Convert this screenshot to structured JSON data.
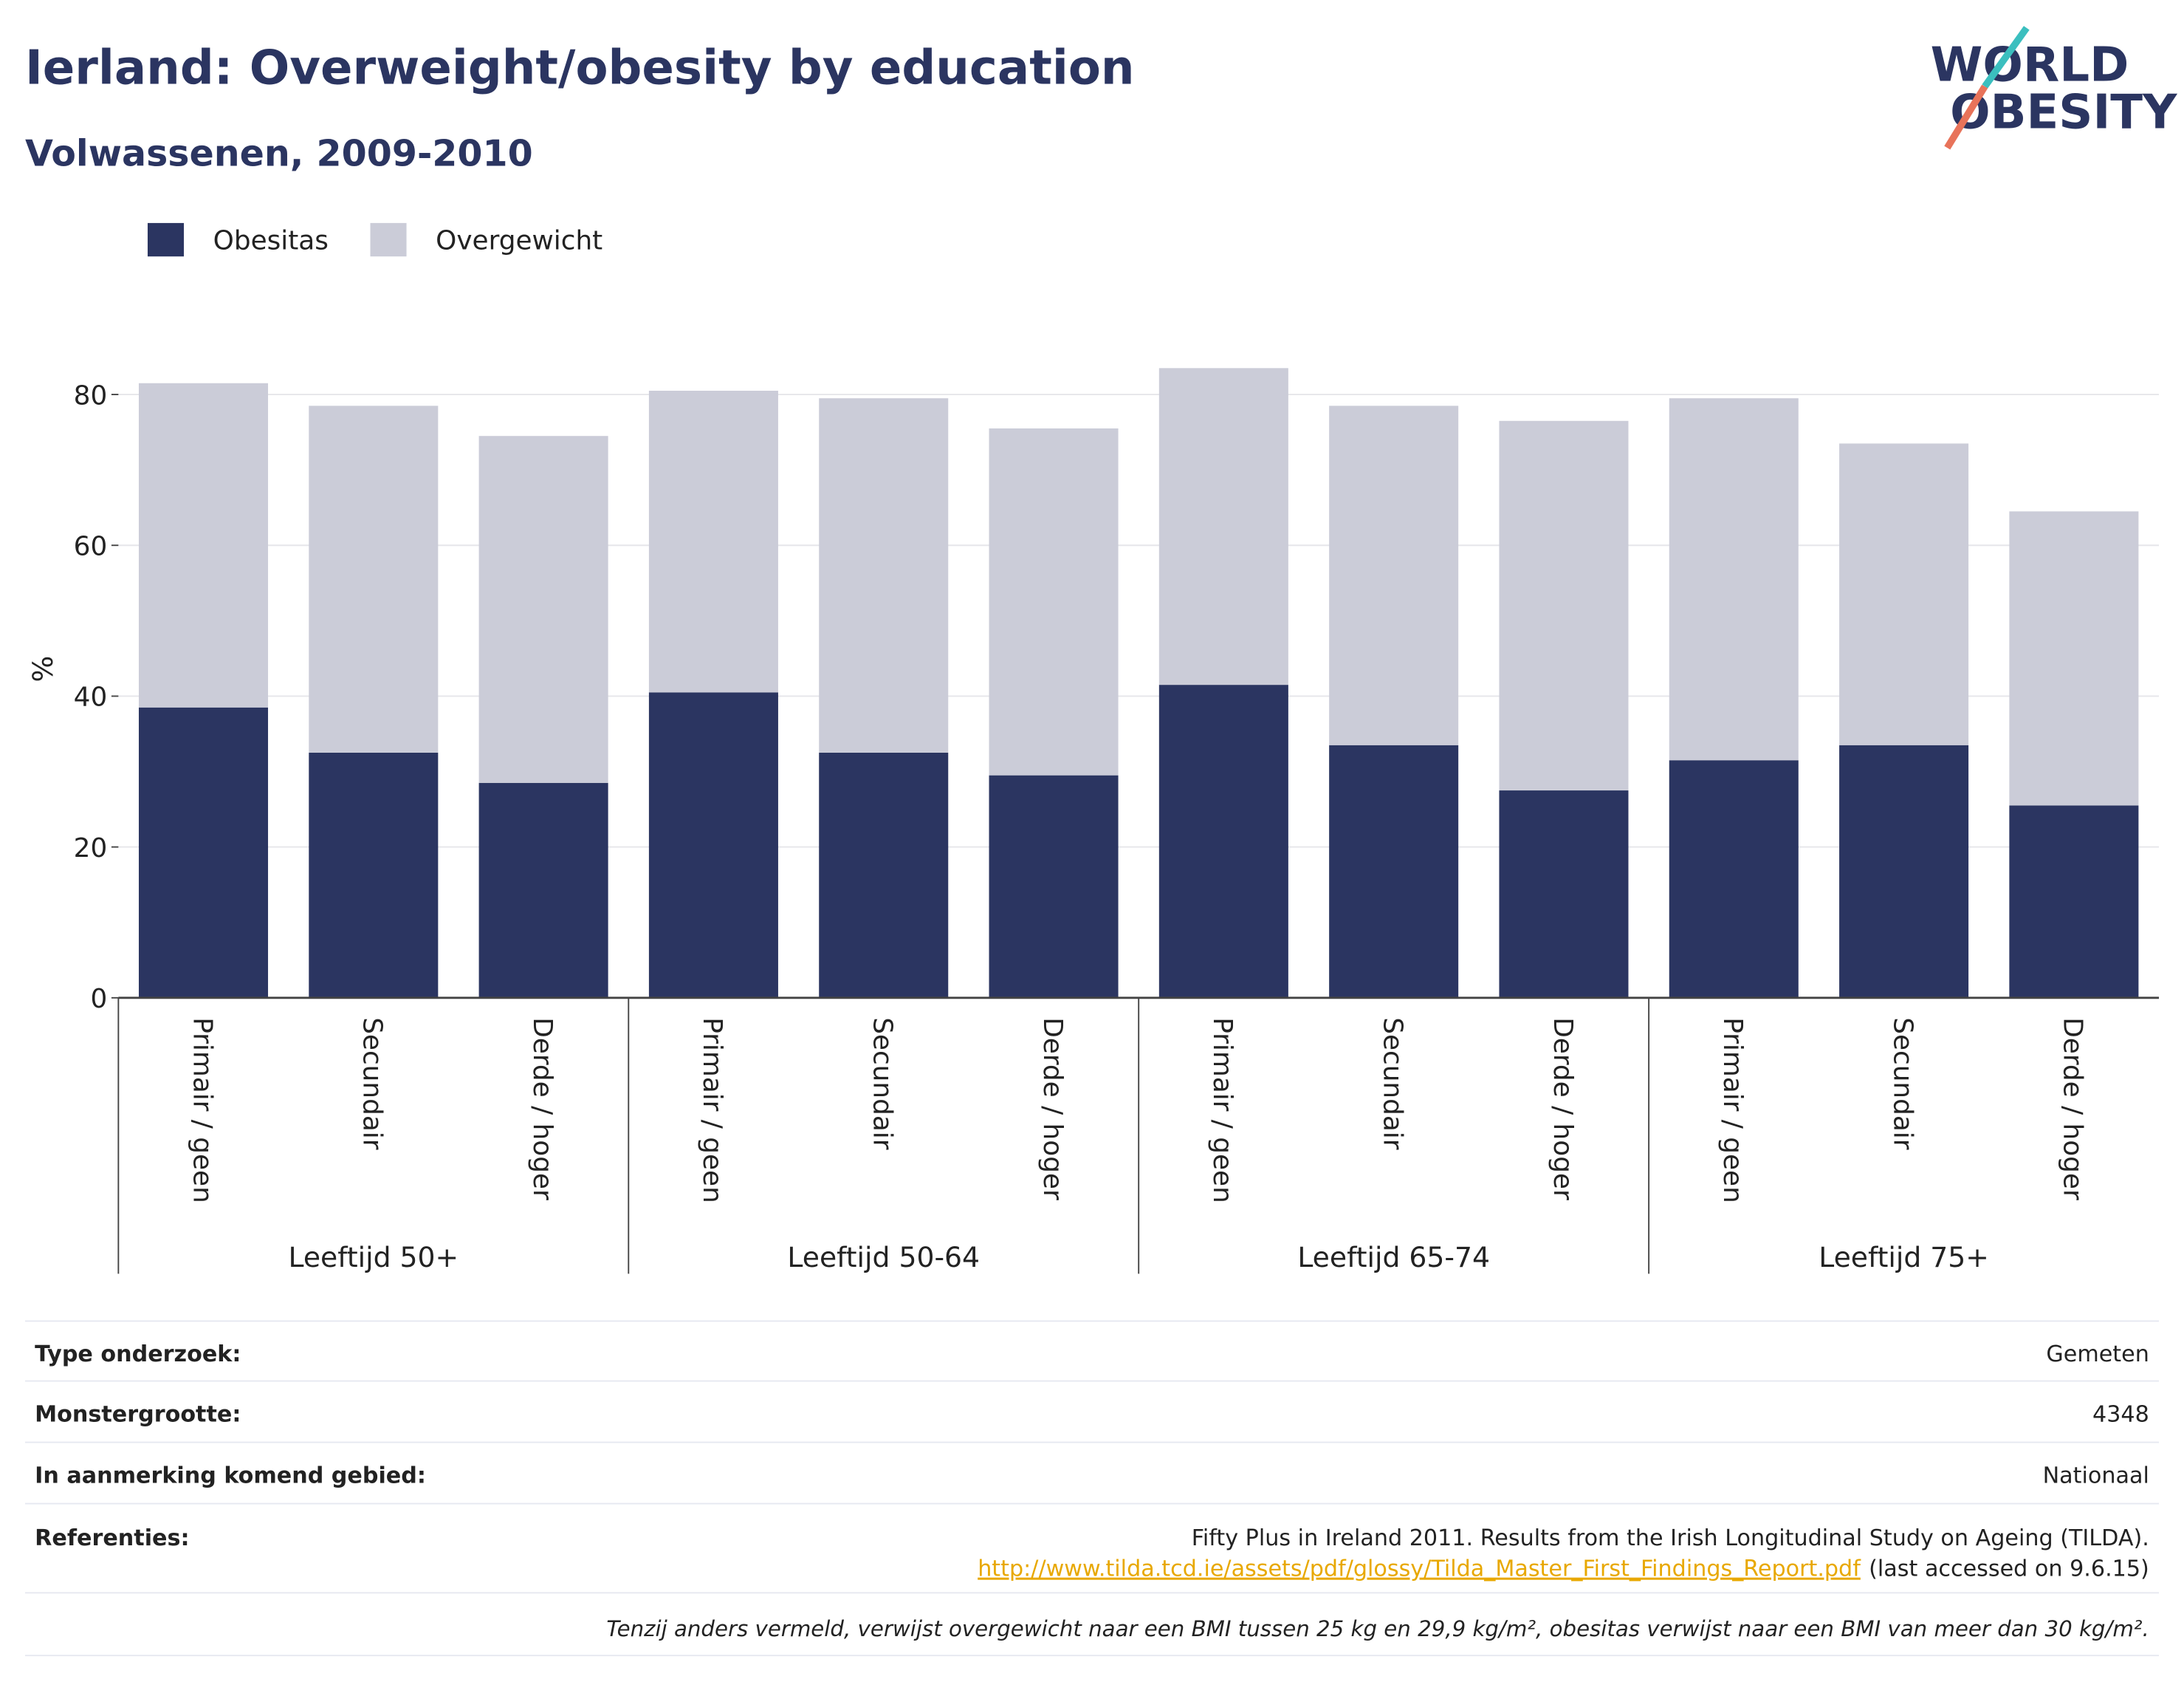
{
  "chart_data": {
    "type": "stacked-bar",
    "title": "Ierland: Overweight/obesity by education",
    "subtitle": "Volwassenen, 2009-2010",
    "y_label": "%",
    "groups": [
      {
        "name": "Leeftijd 50+",
        "categories": [
          "Primair / geen",
          "Secundair",
          "Derde / hoger"
        ]
      },
      {
        "name": "Leeftijd 50-64",
        "categories": [
          "Primair / geen",
          "Secundair",
          "Derde / hoger"
        ]
      },
      {
        "name": "Leeftijd 65-74",
        "categories": [
          "Primair / geen",
          "Secundair",
          "Derde / hoger"
        ]
      },
      {
        "name": "Leeftijd 75+",
        "categories": [
          "Primair / geen",
          "Secundair",
          "Derde / hoger"
        ]
      }
    ],
    "series": [
      {
        "name": "Obesitas",
        "color": "#2b3561",
        "values": [
          38.5,
          32.5,
          28.5,
          40.5,
          32.5,
          29.5,
          41.5,
          33.5,
          27.5,
          31.5,
          33.5,
          25.5
        ]
      },
      {
        "name": "Overgewicht",
        "color": "#cbccd8",
        "values": [
          43,
          46,
          46,
          40,
          47,
          46,
          42,
          45,
          49,
          48,
          40,
          39
        ]
      }
    ],
    "ylim": [
      0,
      85
    ],
    "yticks": [
      0,
      20,
      40,
      60,
      80
    ],
    "grid": true,
    "legend": "top-left"
  },
  "logo": {
    "line1": "WORLD",
    "line2": "OBESITY"
  },
  "info": {
    "rows": [
      {
        "label": "Type onderzoek:",
        "value": "Gemeten"
      },
      {
        "label": "Monstergrootte:",
        "value": "4348"
      },
      {
        "label": "In aanmerking komend gebied:",
        "value": "Nationaal"
      }
    ],
    "references": {
      "label": "Referenties:",
      "text": "Fifty Plus in Ireland 2011. Results from the Irish Longitudinal Study on Ageing (TILDA).",
      "url": "http://www.tilda.tcd.ie/assets/pdf/glossy/Tilda_Master_First_Findings_Report.pdf",
      "note": "(last accessed on 9.6.15)"
    },
    "footnote": "Tenzij anders vermeld, verwijst overgewicht naar een BMI tussen 25 kg en 29,9 kg/m², obesitas verwijst naar een BMI van meer dan 30 kg/m²."
  }
}
